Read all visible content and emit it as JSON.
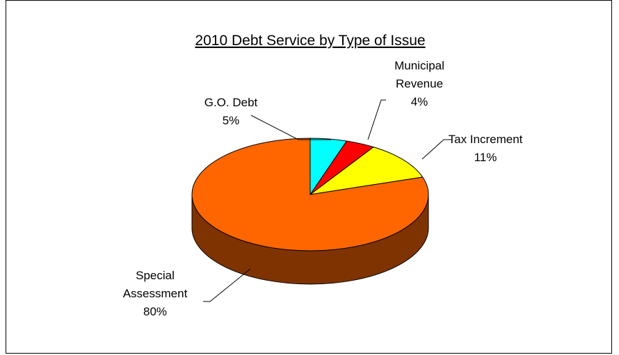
{
  "chart_data": {
    "type": "pie",
    "title": "2010 Debt Service by Type of Issue",
    "three_d": true,
    "slices": [
      {
        "name_lines": [
          "G.O. Debt"
        ],
        "pct_label": "5%",
        "value": 5,
        "color": "#00FFFF",
        "side_color": "#007F7F"
      },
      {
        "name_lines": [
          "Municipal",
          "Revenue"
        ],
        "pct_label": "4%",
        "value": 4,
        "color": "#FF0000",
        "side_color": "#7F0000"
      },
      {
        "name_lines": [
          "Tax Increment"
        ],
        "pct_label": "11%",
        "value": 11,
        "color": "#FFFF00",
        "side_color": "#7F7F00"
      },
      {
        "name_lines": [
          "Special",
          "Assessment"
        ],
        "pct_label": "80%",
        "value": 80,
        "color": "#FF6600",
        "side_color": "#7F3300"
      }
    ]
  }
}
